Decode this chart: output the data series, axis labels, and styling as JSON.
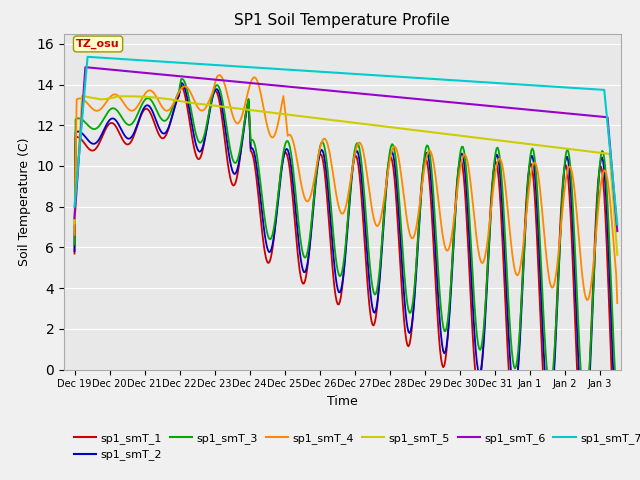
{
  "title": "SP1 Soil Temperature Profile",
  "xlabel": "Time",
  "ylabel": "Soil Temperature (C)",
  "ylim": [
    0,
    16.5
  ],
  "yticks": [
    0,
    2,
    4,
    6,
    8,
    10,
    12,
    14,
    16
  ],
  "series_colors": {
    "sp1_smT_1": "#cc0000",
    "sp1_smT_2": "#0000cc",
    "sp1_smT_3": "#00aa00",
    "sp1_smT_4": "#ff8800",
    "sp1_smT_5": "#cccc00",
    "sp1_smT_6": "#9900cc",
    "sp1_smT_7": "#00cccc"
  },
  "annotation_text": "TZ_osu",
  "annotation_color": "#cc0000",
  "annotation_bg": "#ffffcc",
  "figsize": [
    6.4,
    4.8
  ],
  "dpi": 100
}
